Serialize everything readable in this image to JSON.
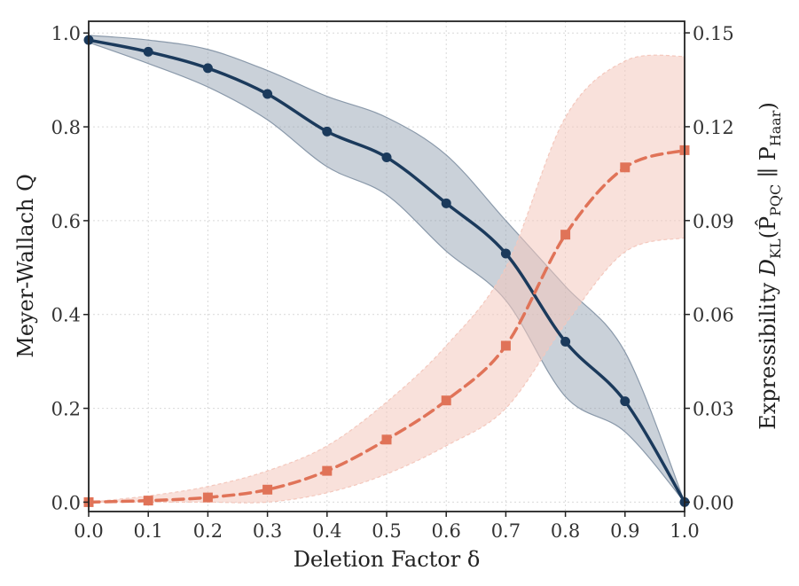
{
  "chart_data": {
    "type": "line",
    "xlabel": "Deletion Factor δ",
    "ylabel_left": "Meyer-Wallach Q",
    "ylabel_right_prefix": "Expressibility ",
    "ylabel_right_math": "D",
    "ylabel_right_sub1": "KL",
    "ylabel_right_mid": "(P̂",
    "ylabel_right_sub2": "PQC",
    "ylabel_right_sep": " ∥ P",
    "ylabel_right_sub3": "Haar",
    "ylabel_right_close": ")",
    "xlim": [
      0.0,
      1.0
    ],
    "ylim_left": [
      -0.02,
      1.025
    ],
    "ylim_right": [
      -0.003,
      0.1537
    ],
    "grid": true,
    "x_ticks": [
      0.0,
      0.1,
      0.2,
      0.3,
      0.4,
      0.5,
      0.6,
      0.7,
      0.8,
      0.9,
      1.0
    ],
    "x_tick_labels": [
      "0.0",
      "0.1",
      "0.2",
      "0.3",
      "0.4",
      "0.5",
      "0.6",
      "0.7",
      "0.8",
      "0.9",
      "1.0"
    ],
    "y_left_ticks": [
      0.0,
      0.2,
      0.4,
      0.6,
      0.8,
      1.0
    ],
    "y_left_tick_labels": [
      "0.0",
      "0.2",
      "0.4",
      "0.6",
      "0.8",
      "1.0"
    ],
    "y_right_ticks": [
      0.0,
      0.03,
      0.06,
      0.09,
      0.12,
      0.15
    ],
    "y_right_tick_labels": [
      "0.00",
      "0.03",
      "0.06",
      "0.09",
      "0.12",
      "0.15"
    ],
    "x": [
      0.0,
      0.1,
      0.2,
      0.3,
      0.4,
      0.5,
      0.6,
      0.7,
      0.8,
      0.9,
      1.0
    ],
    "series": [
      {
        "axis": "left",
        "marker": "circle",
        "line_style": "solid",
        "color": "#1b3a5c",
        "band_color": "#8a99aa",
        "values": [
          0.985,
          0.96,
          0.925,
          0.87,
          0.79,
          0.735,
          0.637,
          0.53,
          0.342,
          0.215,
          0.0
        ],
        "band_upper": [
          0.995,
          0.985,
          0.965,
          0.92,
          0.865,
          0.82,
          0.74,
          0.6,
          0.46,
          0.32,
          0.0
        ],
        "band_lower": [
          0.98,
          0.935,
          0.885,
          0.815,
          0.715,
          0.655,
          0.535,
          0.43,
          0.225,
          0.15,
          0.0
        ]
      },
      {
        "axis": "right",
        "marker": "square",
        "line_style": "dashed",
        "color": "#e07358",
        "band_color": "#f4c8bd",
        "values": [
          0.0,
          0.0005,
          0.0015,
          0.004,
          0.01,
          0.02,
          0.0325,
          0.05,
          0.0855,
          0.107,
          0.1125
        ],
        "band_upper": [
          0.0,
          0.002,
          0.005,
          0.01,
          0.018,
          0.032,
          0.05,
          0.075,
          0.123,
          0.141,
          0.1425
        ],
        "band_lower": [
          0.0,
          0.0,
          0.0,
          0.0,
          0.003,
          0.009,
          0.018,
          0.03,
          0.057,
          0.08,
          0.0845
        ]
      }
    ]
  }
}
